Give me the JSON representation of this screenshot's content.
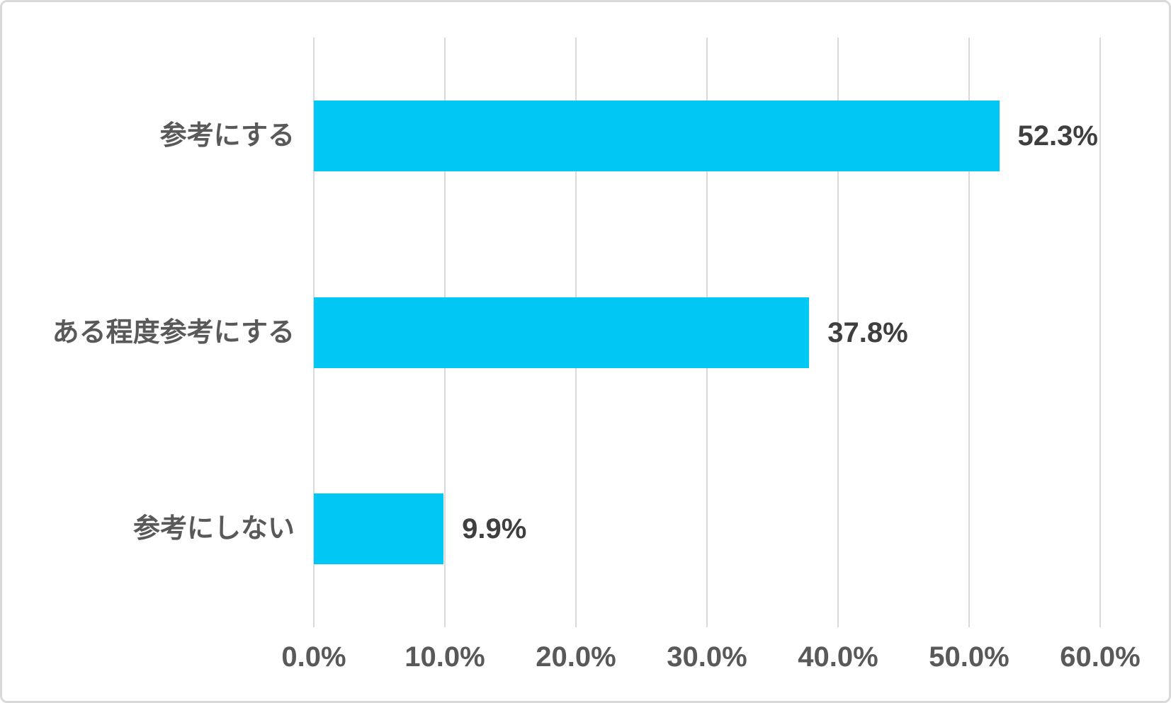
{
  "chart_data": {
    "type": "bar",
    "orientation": "horizontal",
    "categories": [
      "参考にする",
      "ある程度参考にする",
      "参考にしない"
    ],
    "values": [
      52.3,
      37.8,
      9.9
    ],
    "value_labels": [
      "52.3%",
      "37.8%",
      "9.9%"
    ],
    "x_ticks": [
      0,
      10,
      20,
      30,
      40,
      50,
      60
    ],
    "x_tick_labels": [
      "0.0%",
      "10.0%",
      "20.0%",
      "30.0%",
      "40.0%",
      "50.0%",
      "60.0%"
    ],
    "xlim": [
      0,
      60
    ],
    "grid": "vertical-gridlines",
    "legend": "none",
    "colors": {
      "bar": "#00c8f5",
      "value_label_text": "#3f3f3f",
      "axis_text": "#595959",
      "gridline": "#d9d9d9",
      "frame_border": "#d9d9d9",
      "background": "#ffffff"
    }
  }
}
